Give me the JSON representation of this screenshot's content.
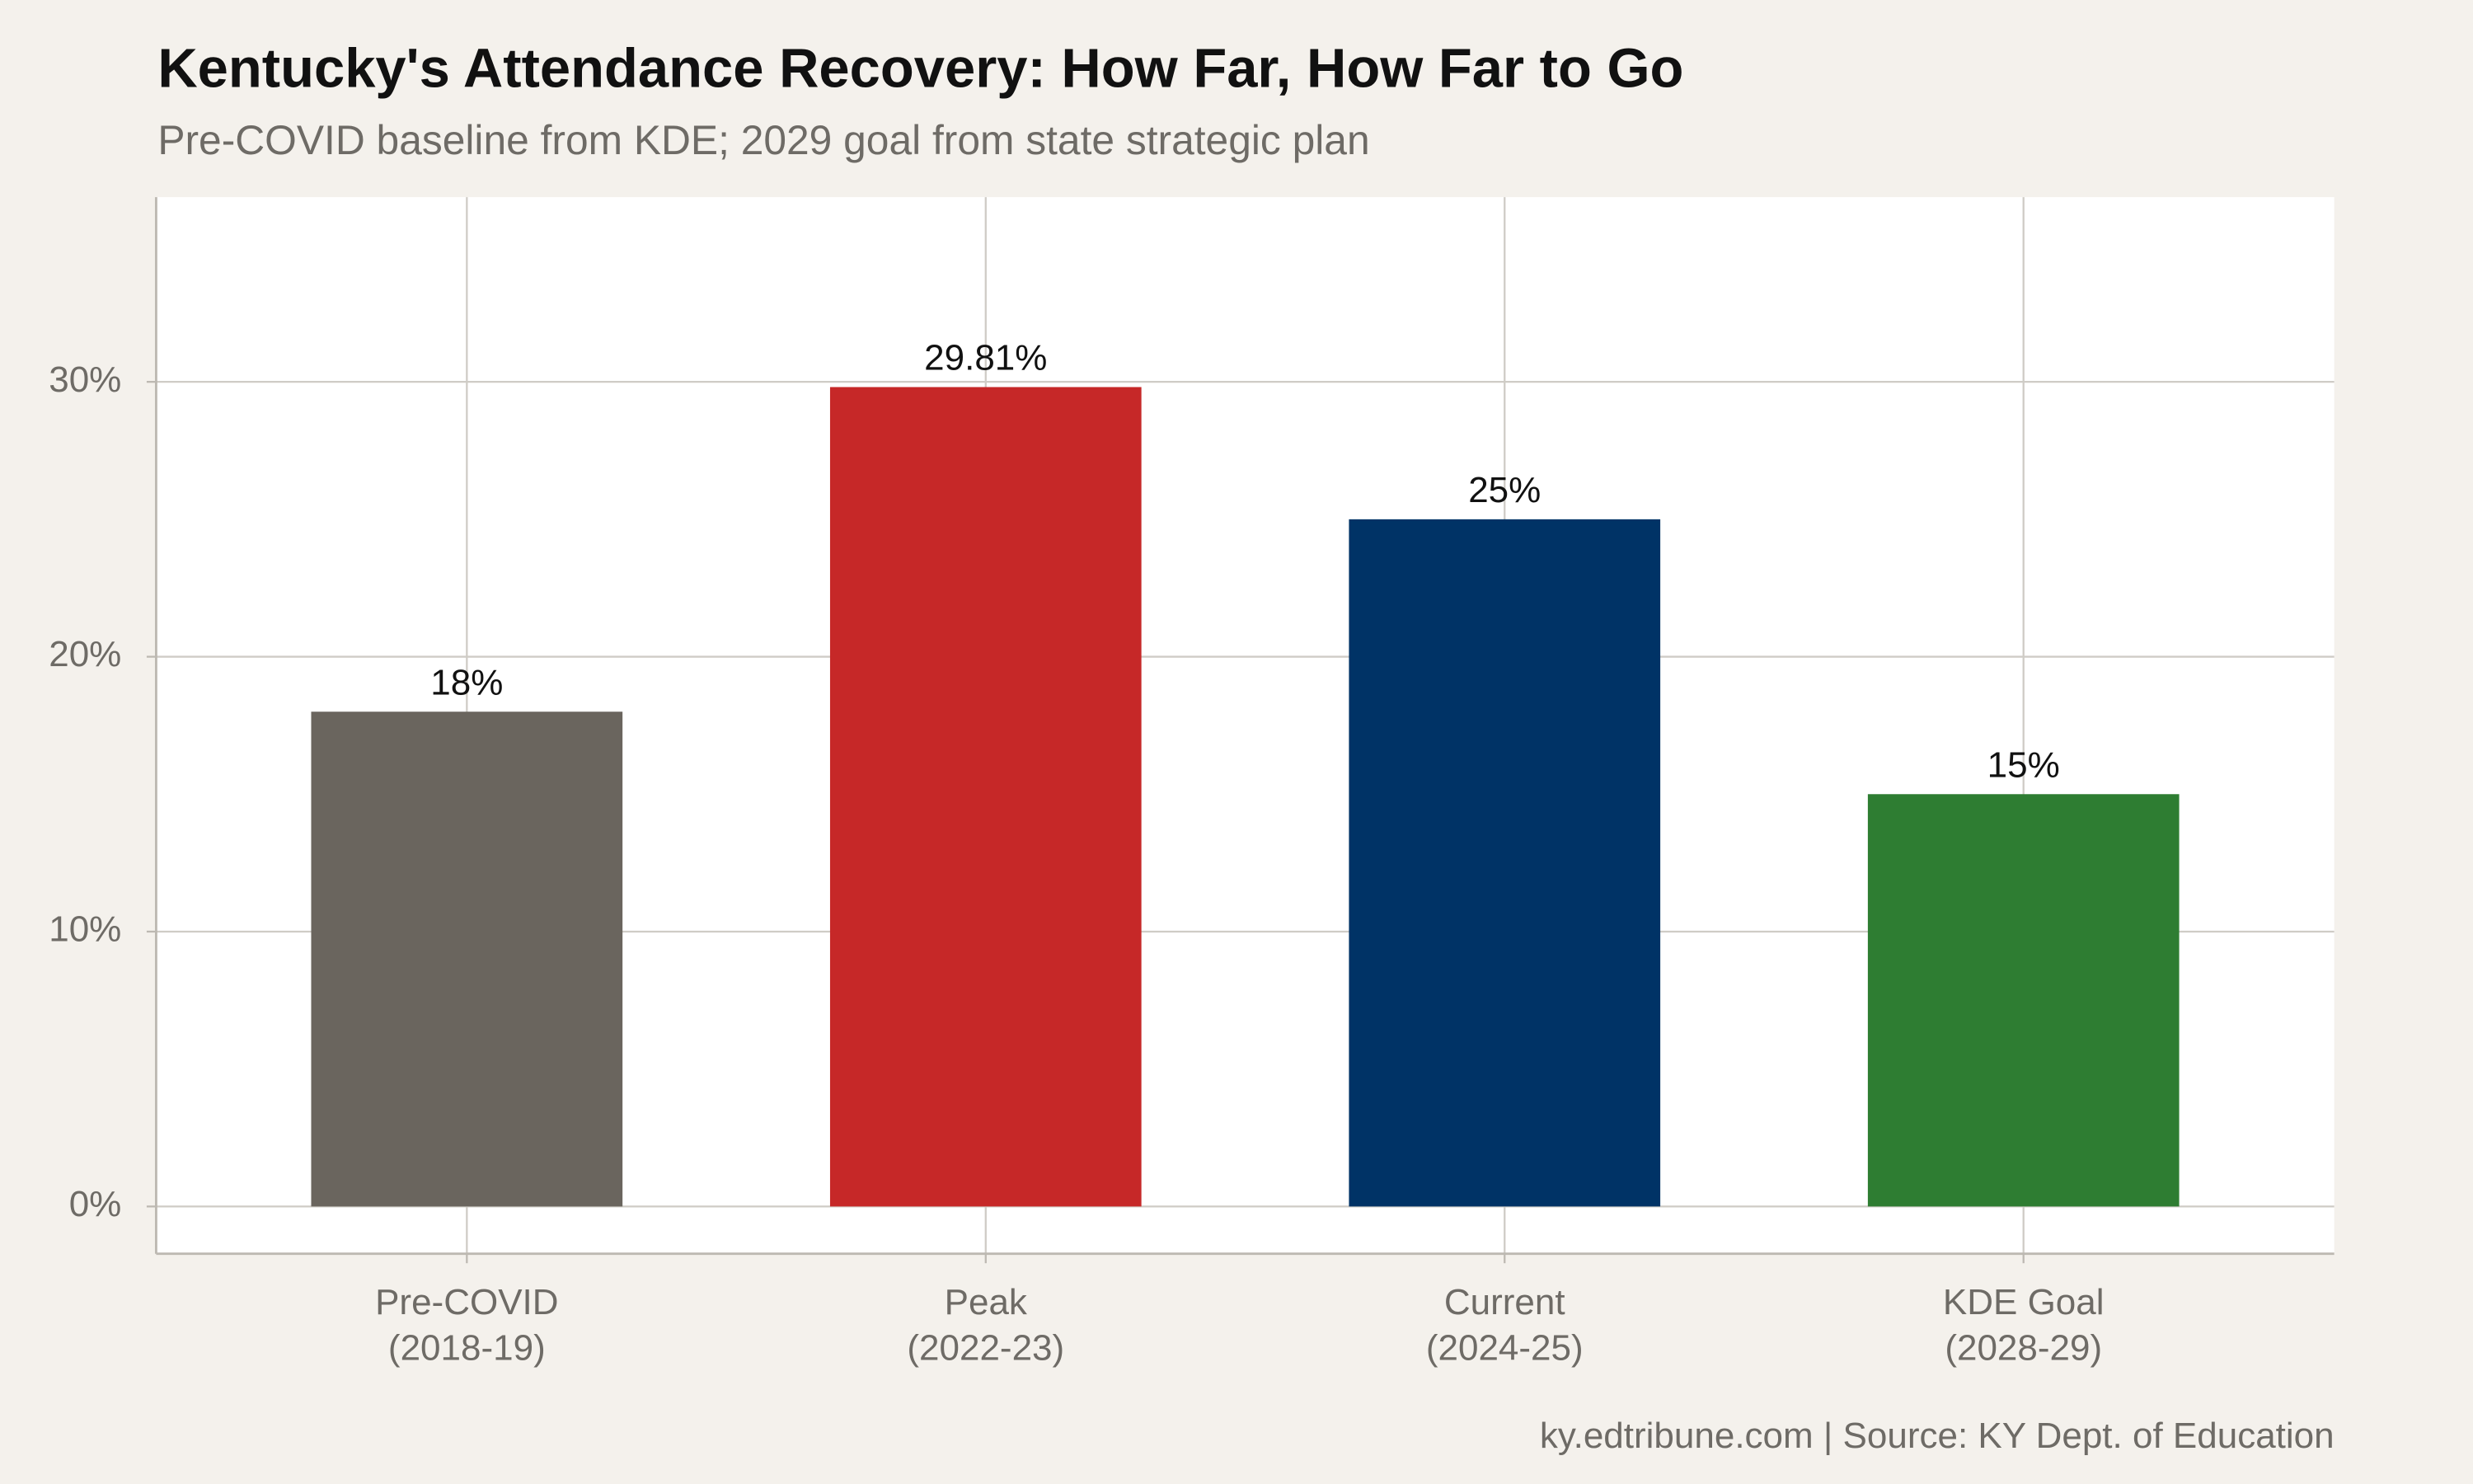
{
  "chart_data": {
    "type": "bar",
    "title": "Kentucky's Attendance Recovery: How Far, How Far to Go",
    "subtitle": "Pre-COVID baseline from KDE; 2029 goal from state strategic plan",
    "caption": "ky.edtribune.com | Source: KY Dept. of Education",
    "categories": [
      "Pre-COVID\n(2018-19)",
      "Peak\n(2022-23)",
      "Current\n(2024-25)",
      "KDE Goal\n(2028-29)"
    ],
    "values": [
      18,
      29.81,
      25,
      15
    ],
    "value_labels": [
      "18%",
      "29.81%",
      "25%",
      "15%"
    ],
    "colors": [
      "#6a655e",
      "#c62828",
      "#003366",
      "#2e7d32"
    ],
    "ylim": [
      -1.72,
      36.72
    ],
    "yticks": [
      {
        "value": 0,
        "label": "0%"
      },
      {
        "value": 10,
        "label": "10%"
      },
      {
        "value": 20,
        "label": "20%"
      },
      {
        "value": 30,
        "label": "30%"
      }
    ],
    "grid": true
  }
}
